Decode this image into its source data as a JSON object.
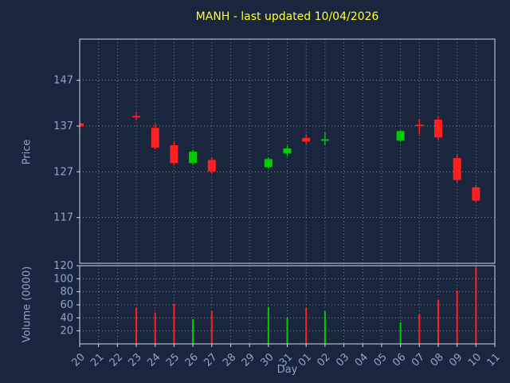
{
  "title": "MANH - last updated 10/04/2026",
  "colors": {
    "figure_bg": "#19263d",
    "axes_bg": "#19263d",
    "up": "#00cc00",
    "down": "#ff2121",
    "grid": "#c8d2e0",
    "spine": "#cfd8e6",
    "tick_text": "#8ea6c8",
    "title_text": "#ffff33"
  },
  "chart_data": {
    "type": "candlestick",
    "title": "MANH - last updated 10/04/2026",
    "xlabel": "Day",
    "ylabel_price": "Price",
    "ylabel_volume": "Volume (0000)",
    "legend": "none",
    "grid": "dotted, both axes, every day and every labeled tick",
    "x_categories": [
      "20",
      "21",
      "22",
      "23",
      "24",
      "25",
      "26",
      "27",
      "28",
      "29",
      "30",
      "31",
      "01",
      "02",
      "03",
      "04",
      "05",
      "06",
      "07",
      "08",
      "09",
      "10",
      "11"
    ],
    "price_yticks": [
      117,
      127,
      137,
      147
    ],
    "price_ylim": [
      107,
      156
    ],
    "volume_yticks": [
      20,
      40,
      60,
      80,
      100,
      120
    ],
    "volume_ylim": [
      0,
      120
    ],
    "candles": [
      {
        "day": "20",
        "open": 137.6,
        "high": 138.0,
        "low": 136.4,
        "close": 136.9,
        "volume": null
      },
      {
        "day": "23",
        "open": 139.2,
        "high": 140.1,
        "low": 138.3,
        "close": 139.0,
        "volume": 55
      },
      {
        "day": "24",
        "open": 136.6,
        "high": 137.5,
        "low": 131.9,
        "close": 132.3,
        "volume": 48
      },
      {
        "day": "25",
        "open": 132.8,
        "high": 133.5,
        "low": 128.4,
        "close": 128.9,
        "volume": 62
      },
      {
        "day": "26",
        "open": 128.9,
        "high": 131.8,
        "low": 128.5,
        "close": 131.4,
        "volume": 38
      },
      {
        "day": "27",
        "open": 129.6,
        "high": 130.2,
        "low": 126.6,
        "close": 127.1,
        "volume": 50
      },
      {
        "day": "30",
        "open": 128.0,
        "high": 130.1,
        "low": 127.7,
        "close": 129.8,
        "volume": 57
      },
      {
        "day": "31",
        "open": 131.0,
        "high": 132.7,
        "low": 130.4,
        "close": 132.1,
        "volume": 40
      },
      {
        "day": "01",
        "open": 134.4,
        "high": 135.2,
        "low": 133.1,
        "close": 133.6,
        "volume": 55
      },
      {
        "day": "02",
        "open": 133.9,
        "high": 135.6,
        "low": 132.8,
        "close": 134.1,
        "volume": 50
      },
      {
        "day": "06",
        "open": 133.8,
        "high": 136.1,
        "low": 133.6,
        "close": 135.9,
        "volume": 33
      },
      {
        "day": "07",
        "open": 137.3,
        "high": 138.4,
        "low": 135.2,
        "close": 137.0,
        "volume": 45
      },
      {
        "day": "08",
        "open": 138.4,
        "high": 139.2,
        "low": 133.9,
        "close": 134.5,
        "volume": 68
      },
      {
        "day": "09",
        "open": 130.0,
        "high": 130.9,
        "low": 124.7,
        "close": 125.2,
        "volume": 82
      },
      {
        "day": "10",
        "open": 123.6,
        "high": 124.1,
        "low": 120.2,
        "close": 120.7,
        "volume": 118
      }
    ]
  }
}
